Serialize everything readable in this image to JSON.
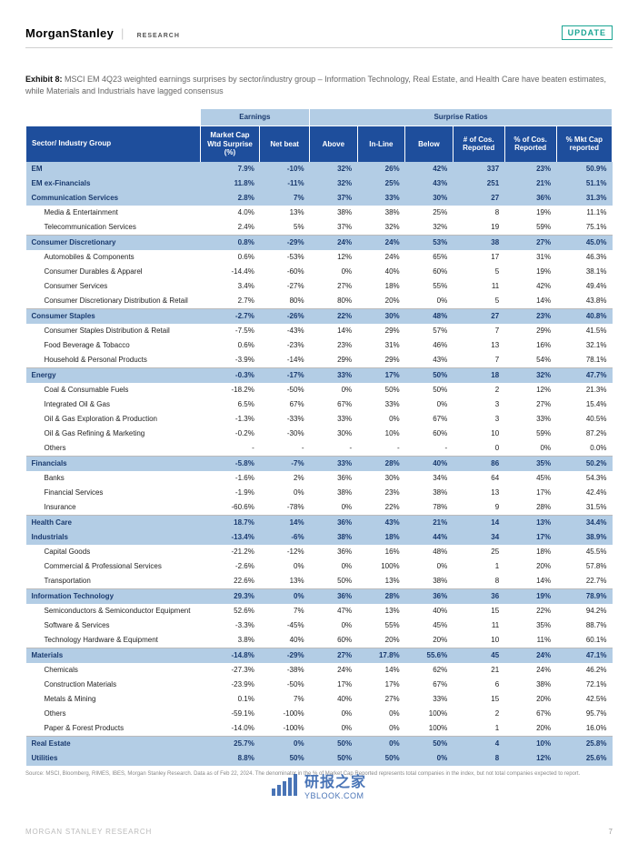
{
  "header": {
    "brand_main": "Morgan",
    "brand_sub": "Stanley",
    "brand_research": "RESEARCH",
    "update_label": "UPDATE"
  },
  "exhibit": {
    "label": "Exhibit 8:",
    "text": "MSCI EM 4Q23 weighted earnings surprises by sector/industry group – Information Technology, Real Estate, and Health Care have beaten estimates, while Materials and Industrials have lagged consensus"
  },
  "table": {
    "top_headers": {
      "earnings": "Earnings",
      "surprise": "Surprise Ratios"
    },
    "columns": [
      "Sector/ Industry Group",
      "Market Cap Wtd Surprise (%)",
      "Net beat",
      "Above",
      "In-Line",
      "Below",
      "# of Cos. Reported",
      "% of Cos. Reported",
      "% Mkt Cap reported"
    ],
    "rows": [
      {
        "t": "sector",
        "c": [
          "EM",
          "7.9%",
          "-10%",
          "32%",
          "26%",
          "42%",
          "337",
          "23%",
          "50.9%"
        ]
      },
      {
        "t": "sector",
        "c": [
          "EM ex-Financials",
          "11.8%",
          "-11%",
          "32%",
          "25%",
          "43%",
          "251",
          "21%",
          "51.1%"
        ]
      },
      {
        "t": "sector",
        "c": [
          "Communication Services",
          "2.8%",
          "7%",
          "37%",
          "33%",
          "30%",
          "27",
          "36%",
          "31.3%"
        ]
      },
      {
        "t": "sub",
        "c": [
          "Media & Entertainment",
          "4.0%",
          "13%",
          "38%",
          "38%",
          "25%",
          "8",
          "19%",
          "11.1%"
        ]
      },
      {
        "t": "sub bline",
        "c": [
          "Telecommunication Services",
          "2.4%",
          "5%",
          "37%",
          "32%",
          "32%",
          "19",
          "59%",
          "75.1%"
        ]
      },
      {
        "t": "sector",
        "c": [
          "Consumer Discretionary",
          "0.8%",
          "-29%",
          "24%",
          "24%",
          "53%",
          "38",
          "27%",
          "45.0%"
        ]
      },
      {
        "t": "sub",
        "c": [
          "Automobiles & Components",
          "0.6%",
          "-53%",
          "12%",
          "24%",
          "65%",
          "17",
          "31%",
          "46.3%"
        ]
      },
      {
        "t": "sub",
        "c": [
          "Consumer Durables & Apparel",
          "-14.4%",
          "-60%",
          "0%",
          "40%",
          "60%",
          "5",
          "19%",
          "38.1%"
        ]
      },
      {
        "t": "sub",
        "c": [
          "Consumer Services",
          "3.4%",
          "-27%",
          "27%",
          "18%",
          "55%",
          "11",
          "42%",
          "49.4%"
        ]
      },
      {
        "t": "sub bline",
        "c": [
          "Consumer Discretionary Distribution & Retail",
          "2.7%",
          "80%",
          "80%",
          "20%",
          "0%",
          "5",
          "14%",
          "43.8%"
        ]
      },
      {
        "t": "sector",
        "c": [
          "Consumer Staples",
          "-2.7%",
          "-26%",
          "22%",
          "30%",
          "48%",
          "27",
          "23%",
          "40.8%"
        ]
      },
      {
        "t": "sub",
        "c": [
          "Consumer Staples Distribution & Retail",
          "-7.5%",
          "-43%",
          "14%",
          "29%",
          "57%",
          "7",
          "29%",
          "41.5%"
        ]
      },
      {
        "t": "sub",
        "c": [
          "Food Beverage & Tobacco",
          "0.6%",
          "-23%",
          "23%",
          "31%",
          "46%",
          "13",
          "16%",
          "32.1%"
        ]
      },
      {
        "t": "sub bline",
        "c": [
          "Household & Personal Products",
          "-3.9%",
          "-14%",
          "29%",
          "29%",
          "43%",
          "7",
          "54%",
          "78.1%"
        ]
      },
      {
        "t": "sector",
        "c": [
          "Energy",
          "-0.3%",
          "-17%",
          "33%",
          "17%",
          "50%",
          "18",
          "32%",
          "47.7%"
        ]
      },
      {
        "t": "sub",
        "c": [
          "Coal & Consumable Fuels",
          "-18.2%",
          "-50%",
          "0%",
          "50%",
          "50%",
          "2",
          "12%",
          "21.3%"
        ]
      },
      {
        "t": "sub",
        "c": [
          "Integrated Oil & Gas",
          "6.5%",
          "67%",
          "67%",
          "33%",
          "0%",
          "3",
          "27%",
          "15.4%"
        ]
      },
      {
        "t": "sub",
        "c": [
          "Oil & Gas Exploration & Production",
          "-1.3%",
          "-33%",
          "33%",
          "0%",
          "67%",
          "3",
          "33%",
          "40.5%"
        ]
      },
      {
        "t": "sub",
        "c": [
          "Oil & Gas Refining & Marketing",
          "-0.2%",
          "-30%",
          "30%",
          "10%",
          "60%",
          "10",
          "59%",
          "87.2%"
        ]
      },
      {
        "t": "sub bline",
        "c": [
          "Others",
          "-",
          "-",
          "-",
          "-",
          "-",
          "0",
          "0%",
          "0.0%"
        ]
      },
      {
        "t": "sector",
        "c": [
          "Financials",
          "-5.8%",
          "-7%",
          "33%",
          "28%",
          "40%",
          "86",
          "35%",
          "50.2%"
        ]
      },
      {
        "t": "sub",
        "c": [
          "Banks",
          "-1.6%",
          "2%",
          "36%",
          "30%",
          "34%",
          "64",
          "45%",
          "54.3%"
        ]
      },
      {
        "t": "sub",
        "c": [
          "Financial Services",
          "-1.9%",
          "0%",
          "38%",
          "23%",
          "38%",
          "13",
          "17%",
          "42.4%"
        ]
      },
      {
        "t": "sub bline",
        "c": [
          "Insurance",
          "-60.6%",
          "-78%",
          "0%",
          "22%",
          "78%",
          "9",
          "28%",
          "31.5%"
        ]
      },
      {
        "t": "sector",
        "c": [
          "Health Care",
          "18.7%",
          "14%",
          "36%",
          "43%",
          "21%",
          "14",
          "13%",
          "34.4%"
        ]
      },
      {
        "t": "sector",
        "c": [
          "Industrials",
          "-13.4%",
          "-6%",
          "38%",
          "18%",
          "44%",
          "34",
          "17%",
          "38.9%"
        ]
      },
      {
        "t": "sub",
        "c": [
          "Capital Goods",
          "-21.2%",
          "-12%",
          "36%",
          "16%",
          "48%",
          "25",
          "18%",
          "45.5%"
        ]
      },
      {
        "t": "sub",
        "c": [
          "Commercial & Professional Services",
          "-2.6%",
          "0%",
          "0%",
          "100%",
          "0%",
          "1",
          "20%",
          "57.8%"
        ]
      },
      {
        "t": "sub bline",
        "c": [
          "Transportation",
          "22.6%",
          "13%",
          "50%",
          "13%",
          "38%",
          "8",
          "14%",
          "22.7%"
        ]
      },
      {
        "t": "sector",
        "c": [
          "Information Technology",
          "29.3%",
          "0%",
          "36%",
          "28%",
          "36%",
          "36",
          "19%",
          "78.9%"
        ]
      },
      {
        "t": "sub",
        "c": [
          "Semiconductors & Semiconductor Equipment",
          "52.6%",
          "7%",
          "47%",
          "13%",
          "40%",
          "15",
          "22%",
          "94.2%"
        ]
      },
      {
        "t": "sub",
        "c": [
          "Software & Services",
          "-3.3%",
          "-45%",
          "0%",
          "55%",
          "45%",
          "11",
          "35%",
          "88.7%"
        ]
      },
      {
        "t": "sub bline",
        "c": [
          "Technology Hardware & Equipment",
          "3.8%",
          "40%",
          "60%",
          "20%",
          "20%",
          "10",
          "11%",
          "60.1%"
        ]
      },
      {
        "t": "sector",
        "c": [
          "Materials",
          "-14.8%",
          "-29%",
          "27%",
          "17.8%",
          "55.6%",
          "45",
          "24%",
          "47.1%"
        ]
      },
      {
        "t": "sub",
        "c": [
          "Chemicals",
          "-27.3%",
          "-38%",
          "24%",
          "14%",
          "62%",
          "21",
          "24%",
          "46.2%"
        ]
      },
      {
        "t": "sub",
        "c": [
          "Construction Materials",
          "-23.9%",
          "-50%",
          "17%",
          "17%",
          "67%",
          "6",
          "38%",
          "72.1%"
        ]
      },
      {
        "t": "sub",
        "c": [
          "Metals & Mining",
          "0.1%",
          "7%",
          "40%",
          "27%",
          "33%",
          "15",
          "20%",
          "42.5%"
        ]
      },
      {
        "t": "sub",
        "c": [
          "Others",
          "-59.1%",
          "-100%",
          "0%",
          "0%",
          "100%",
          "2",
          "67%",
          "95.7%"
        ]
      },
      {
        "t": "sub bline",
        "c": [
          "Paper & Forest Products",
          "-14.0%",
          "-100%",
          "0%",
          "0%",
          "100%",
          "1",
          "20%",
          "16.0%"
        ]
      },
      {
        "t": "sector",
        "c": [
          "Real Estate",
          "25.7%",
          "0%",
          "50%",
          "0%",
          "50%",
          "4",
          "10%",
          "25.8%"
        ]
      },
      {
        "t": "sector",
        "c": [
          "Utilities",
          "8.8%",
          "50%",
          "50%",
          "50%",
          "0%",
          "8",
          "12%",
          "25.6%"
        ]
      }
    ]
  },
  "source": "Source: MSCI, Bloomberg, RIMES, IBES, Morgan Stanley Research. Data as of Feb 22, 2024. The denominator in the % of Market Cap Reported represents total companies in the index, but not total companies expected to report.",
  "footer": {
    "left": "MORGAN STANLEY RESEARCH",
    "page": "7"
  },
  "watermark": {
    "cn": "研报之家",
    "en": "YBLOOK.COM",
    "bars": [
      8,
      12,
      16,
      20,
      24
    ]
  },
  "colors": {
    "header_blue": "#1e4e9c",
    "light_blue": "#b3cde5",
    "teal": "#1aa493",
    "ms_blue": "#2a5caa"
  }
}
